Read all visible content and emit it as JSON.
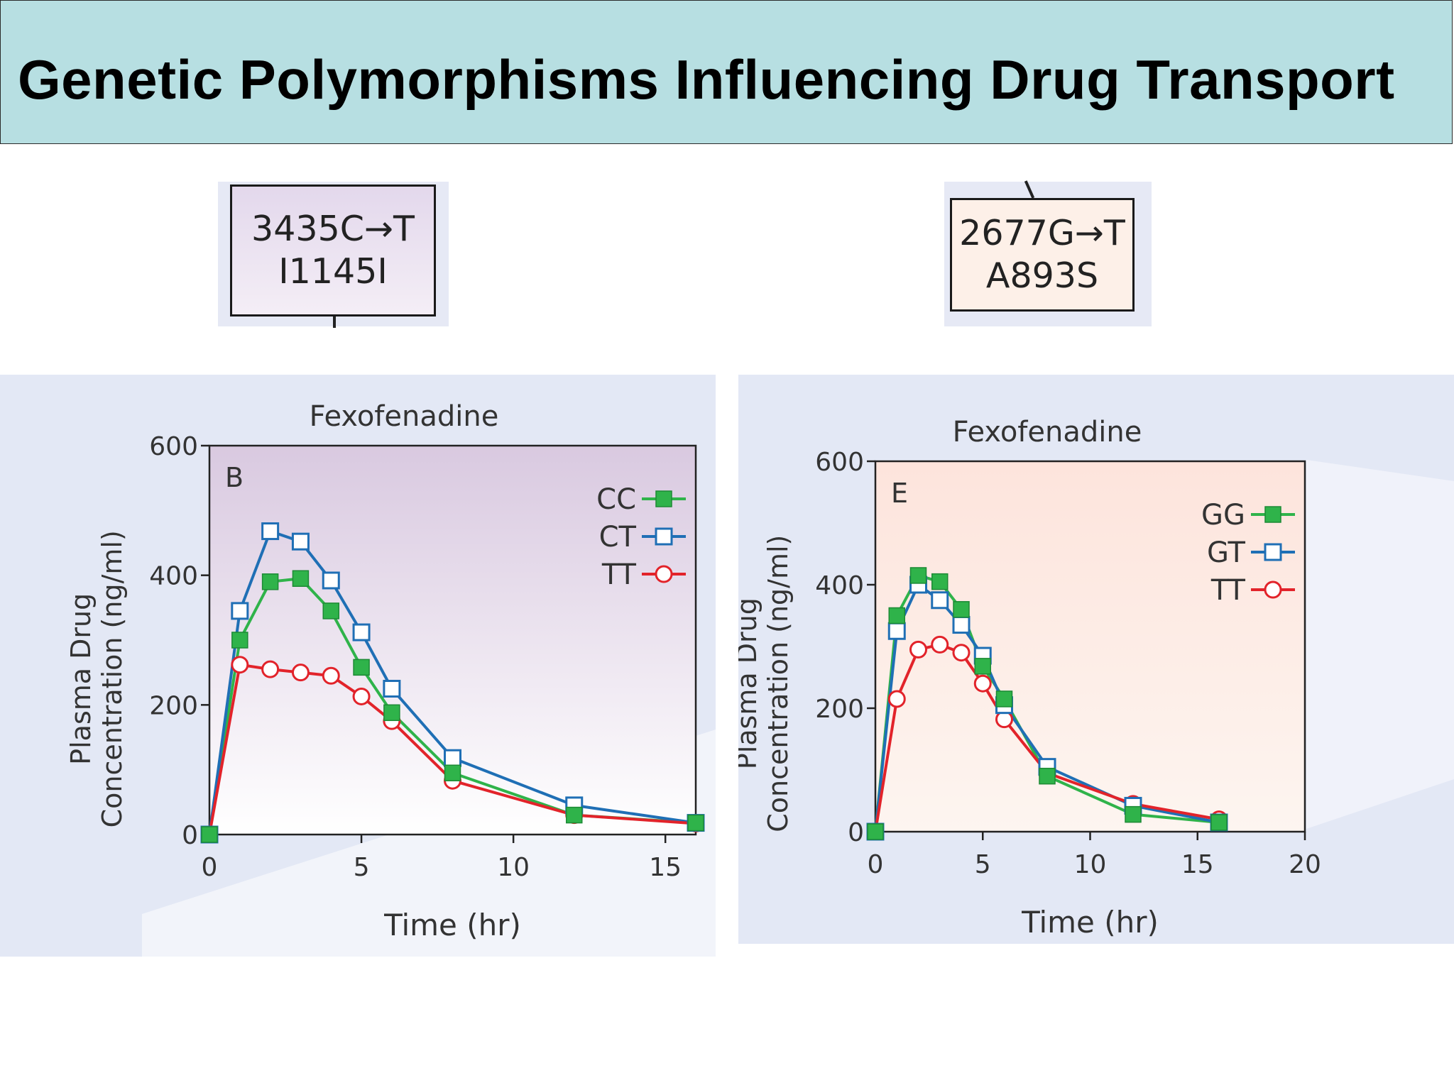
{
  "slide": {
    "title": "Genetic Polymorphisms Influencing Drug Transport"
  },
  "mutations": [
    {
      "line1": "3435C→T",
      "line2": "I1145I"
    },
    {
      "line1": "2677G→T",
      "line2": "A893S"
    }
  ],
  "chart_data": [
    {
      "type": "line",
      "panel_label": "B",
      "title": "Fexofenadine",
      "xlabel": "Time (hr)",
      "ylabel_line1": "Plasma Drug",
      "ylabel_line2": "Concentration (ng/ml)",
      "xlim": [
        0,
        16
      ],
      "ylim": [
        0,
        600
      ],
      "xticks": [
        0,
        5,
        10,
        15
      ],
      "yticks": [
        0,
        200,
        400,
        600
      ],
      "legend_position": "top-right",
      "plot_background": [
        "#d9c9e0",
        "#ffffff"
      ],
      "series": [
        {
          "name": "CC",
          "color": "#2fb34a",
          "marker": "filled-square",
          "x": [
            0,
            1,
            2,
            3,
            4,
            5,
            6,
            8,
            12,
            16
          ],
          "y": [
            0,
            300,
            390,
            395,
            345,
            258,
            188,
            95,
            30,
            18
          ]
        },
        {
          "name": "CT",
          "color": "#1f6fb5",
          "marker": "open-square",
          "x": [
            0,
            1,
            2,
            3,
            4,
            5,
            6,
            8,
            12,
            16
          ],
          "y": [
            0,
            345,
            468,
            452,
            392,
            312,
            225,
            118,
            45,
            18
          ]
        },
        {
          "name": "TT",
          "color": "#e2232a",
          "marker": "open-circle",
          "x": [
            0,
            1,
            2,
            3,
            4,
            5,
            6,
            8,
            12,
            16
          ],
          "y": [
            0,
            262,
            255,
            250,
            245,
            213,
            175,
            83,
            30,
            17
          ]
        }
      ]
    },
    {
      "type": "line",
      "panel_label": "E",
      "title": "Fexofenadine",
      "xlabel": "Time (hr)",
      "ylabel_line1": "Plasma Drug",
      "ylabel_line2": "Concentration (ng/ml)",
      "xlim": [
        0,
        20
      ],
      "ylim": [
        0,
        600
      ],
      "xticks": [
        0,
        5,
        10,
        15,
        20
      ],
      "yticks": [
        0,
        200,
        400,
        600
      ],
      "legend_position": "top-right",
      "plot_background": [
        "#fde4dc",
        "#fdf5f0"
      ],
      "series": [
        {
          "name": "GG",
          "color": "#2fb34a",
          "marker": "filled-square",
          "x": [
            0,
            1,
            2,
            3,
            4,
            5,
            6,
            8,
            12,
            16
          ],
          "y": [
            0,
            350,
            415,
            405,
            360,
            268,
            215,
            90,
            28,
            15
          ]
        },
        {
          "name": "GT",
          "color": "#1f6fb5",
          "marker": "open-square",
          "x": [
            0,
            1,
            2,
            3,
            4,
            5,
            6,
            8,
            12,
            16
          ],
          "y": [
            0,
            325,
            400,
            375,
            335,
            285,
            205,
            105,
            42,
            15
          ]
        },
        {
          "name": "TT",
          "color": "#e2232a",
          "marker": "open-circle",
          "x": [
            0,
            1,
            2,
            3,
            4,
            5,
            6,
            8,
            12,
            16
          ],
          "y": [
            0,
            215,
            295,
            303,
            290,
            240,
            182,
            95,
            45,
            20
          ]
        }
      ]
    }
  ]
}
